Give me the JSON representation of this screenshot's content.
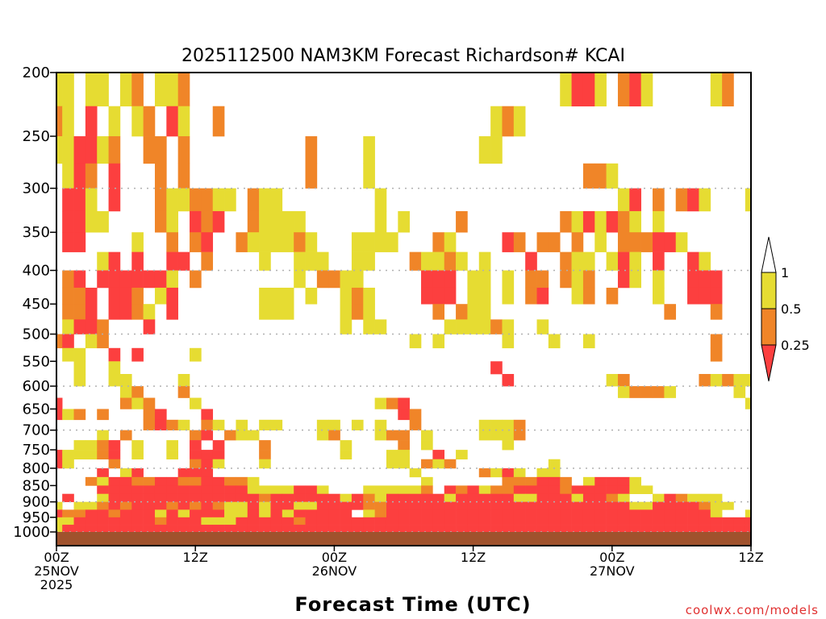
{
  "chart_data": {
    "type": "heatmap",
    "title": "2025112500 NAM3KM Forecast Richardson# KCAI",
    "xlabel": "Forecast Time (UTC)",
    "ylabel": "",
    "x_units": "forecast hour",
    "xlim": [
      0,
      60
    ],
    "ylim": [
      1000,
      200
    ],
    "y_scale": "log-pressure",
    "y_ticks": [
      200,
      250,
      300,
      350,
      400,
      450,
      500,
      550,
      600,
      650,
      700,
      750,
      800,
      850,
      900,
      950,
      1000
    ],
    "y_gridlines": [
      300,
      400,
      500,
      600,
      700,
      800,
      900,
      1000
    ],
    "x_ticks": [
      {
        "hour": 0,
        "label": "00Z",
        "sub": "25NOV",
        "sub2": "2025"
      },
      {
        "hour": 12,
        "label": "12Z",
        "sub": "",
        "sub2": ""
      },
      {
        "hour": 24,
        "label": "00Z",
        "sub": "26NOV",
        "sub2": ""
      },
      {
        "hour": 36,
        "label": "12Z",
        "sub": "",
        "sub2": ""
      },
      {
        "hour": 48,
        "label": "00Z",
        "sub": "27NOV",
        "sub2": ""
      },
      {
        "hour": 60,
        "label": "12Z",
        "sub": "",
        "sub2": ""
      }
    ],
    "legend": {
      "placement": "right",
      "bins": [
        {
          "code": "r",
          "range": "< 0.25",
          "color": "#fc3f3f"
        },
        {
          "code": "o",
          "range": "0.25 - 0.5",
          "color": "#f08528"
        },
        {
          "code": "y",
          "range": "0.5 - 1",
          "color": "#e6dc32"
        },
        {
          "code": ".",
          "range": "> 1",
          "color": "#ffffff"
        }
      ],
      "labels": [
        "1",
        "0.5",
        "0.25"
      ]
    },
    "ground_color": "#a0522d",
    "level_step_hpa": 25,
    "grid_note": "rows from 200 hPa downward in 25 hPa layers; one char per forecast hour 0-60",
    "rows": [
      "yy.yy.yo.yyo................................yrry.ory.....yo..........",
      "oy.r.y.yo.ry..o.......................yoy",
      "yyrryo..oo.o..........o....y.........yy.",
      ".yro.r...o.o..........o....y..................ooy..",
      ".rry.r...oyyooyy.oyy........y....................yr.o.ory...y",
      ".rryy....oy.ror..oyyyy......y.y....o........oyryroy.y",
      ".rr....y..o.or..oyyyyoy...yyyy...oy....ro.oo.o.y.ooorry",
      "....yr.r..rr.o....y..yyy..yy...oyyoy.y...r..oyy.yry.r..ry",
      ".or.rrrrrry.o........y.ooyy.....rrr.yy.y.oo.oyo..ry.y..rrr",
      ".oor.rro.yr.......yyy.y..yoy....rrr.yy.y.or..yo.o...y..rrr",
      ".oor.rroy.r.......yyy....yoy.....o.oyy...............o...o",
      ".yrro...r................y.yy.....yyyyoy..y",
      "or.yo..........................y.y.....y...y..y..........o",
      ".yy..r.r....y............................................o",
      "..y..y................................r",
      "..y..yy....y...........................r........yo......oyoyy",
      "......yo...o.....................................yoooy.....y",
      "r.....oyo...y...............yor.............................y",
      "ryo.o...or...r................ro",
      "........oroy.oy.y.yy...yy.y.y..o.....yyyo",
      "....y.o.....or.oyy.....yo...yoo.y....yyyo",
      "..yyor.y..y.r.r...o......y....o.y......y",
      "ryyyor.y..y.rrr...o......y...yy..r.y",
      "ry...o......ory...y..........yy.oyo........y",
      "....r.yr...rrr.................y.....oyry.yy",
      "...oyrroorroorrooy..............y......ooorro.yrrry",
      "....rrrrrrrrrrrrryyyyrry...yyyyyo.roryoorrrrorrrrryy",
      ".r..yrrrrrrrrrrrrrorrrrrryroyrrrrryrrrrryyrrryrroy..yroyyy",
      "y.yyororrrororoyyryrryyrrrroorrrrrrrrrrrrrrrrrrrrryyrrrroyy",
      "roorrorrryryrrryyryryrrrrr.yorrrrrrrrrrrrrrrrrrrrrrrrrrrry..y",
      "yyrrrrrrrorrryyyrrrrrorrrrrrrrrrrrrrrrrrrrrrrrrrrrrrrrrrrrrrr",
      "yrrrrrrrrrrrrrrrrrrrrrrrrrrrrrrrrrrrrrrrrrrrrrrrrrrrrrrrrrrrr"
    ]
  },
  "credit": "coolwx.com/models"
}
